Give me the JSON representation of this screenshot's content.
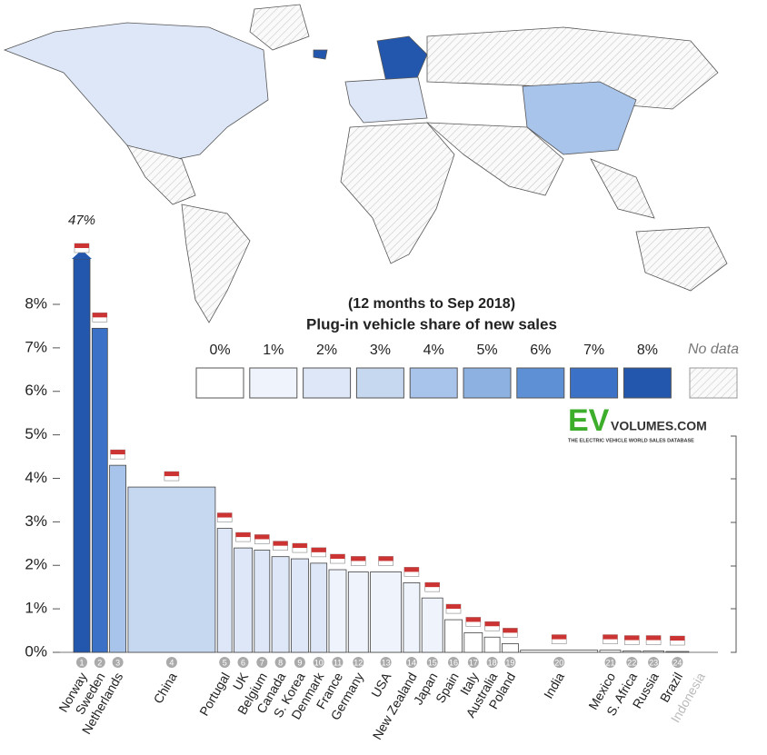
{
  "chart_data": {
    "type": "bar",
    "title": "Plug-in vehicle share of new sales",
    "subtitle": "(12 months to Sep 2018)",
    "logo": {
      "mark": "EV",
      "name": "VOLUMES.COM",
      "tagline": "THE ELECTRIC VEHICLE WORLD SALES DATABASE"
    },
    "categories": [
      "Norway",
      "Sweden",
      "Netherlands",
      "China",
      "Portugal",
      "UK",
      "Belgium",
      "Canada",
      "S. Korea",
      "Denmark",
      "France",
      "Germany",
      "USA",
      "New Zealand",
      "Japan",
      "Spain",
      "Italy",
      "Australia",
      "Poland",
      "India",
      "Mexico",
      "S. Africa",
      "Russia",
      "Brazil",
      "Indonesia"
    ],
    "ranks": [
      1,
      2,
      3,
      4,
      5,
      6,
      7,
      8,
      9,
      10,
      11,
      12,
      13,
      14,
      15,
      16,
      17,
      18,
      19,
      20,
      21,
      22,
      23,
      24,
      null
    ],
    "values": [
      47,
      7.45,
      4.3,
      3.8,
      2.85,
      2.4,
      2.35,
      2.2,
      2.15,
      2.05,
      1.9,
      1.85,
      1.85,
      1.6,
      1.25,
      0.75,
      0.45,
      0.35,
      0.2,
      0.05,
      0.05,
      0.03,
      0.03,
      0.02,
      null
    ],
    "value_labels": [
      "47%",
      null,
      null,
      null,
      null,
      null,
      null,
      null,
      null,
      null,
      null,
      null,
      null,
      null,
      null,
      null,
      null,
      null,
      null,
      null,
      null,
      null,
      null,
      null,
      null
    ],
    "bar_widths": [
      18,
      17,
      18,
      96,
      16,
      20,
      17,
      19,
      19,
      18,
      19,
      22,
      34,
      18,
      23,
      19,
      20,
      17,
      18,
      85,
      23,
      20,
      23,
      25,
      null
    ],
    "ylim": [
      0,
      8
    ],
    "yticks": [
      {
        "value": 0,
        "label": "0%"
      },
      {
        "value": 1,
        "label": "1%"
      },
      {
        "value": 2,
        "label": "2%"
      },
      {
        "value": 3,
        "label": "3%"
      },
      {
        "value": 4,
        "label": "4%"
      },
      {
        "value": 5,
        "label": "5%"
      },
      {
        "value": 6,
        "label": "6%"
      },
      {
        "value": 7,
        "label": "7%"
      },
      {
        "value": 8,
        "label": "8%"
      }
    ],
    "legend": {
      "items": [
        {
          "label": "0%",
          "color": "#ffffff"
        },
        {
          "label": "1%",
          "color": "#eef3fc"
        },
        {
          "label": "2%",
          "color": "#dde7f7"
        },
        {
          "label": "3%",
          "color": "#c6d7f0"
        },
        {
          "label": "4%",
          "color": "#a9c4ea"
        },
        {
          "label": "5%",
          "color": "#8db1e1"
        },
        {
          "label": "6%",
          "color": "#5e90d6"
        },
        {
          "label": "7%",
          "color": "#3b72c7"
        },
        {
          "label": "8%",
          "color": "#2357ae"
        }
      ],
      "no_data": "No data"
    }
  }
}
